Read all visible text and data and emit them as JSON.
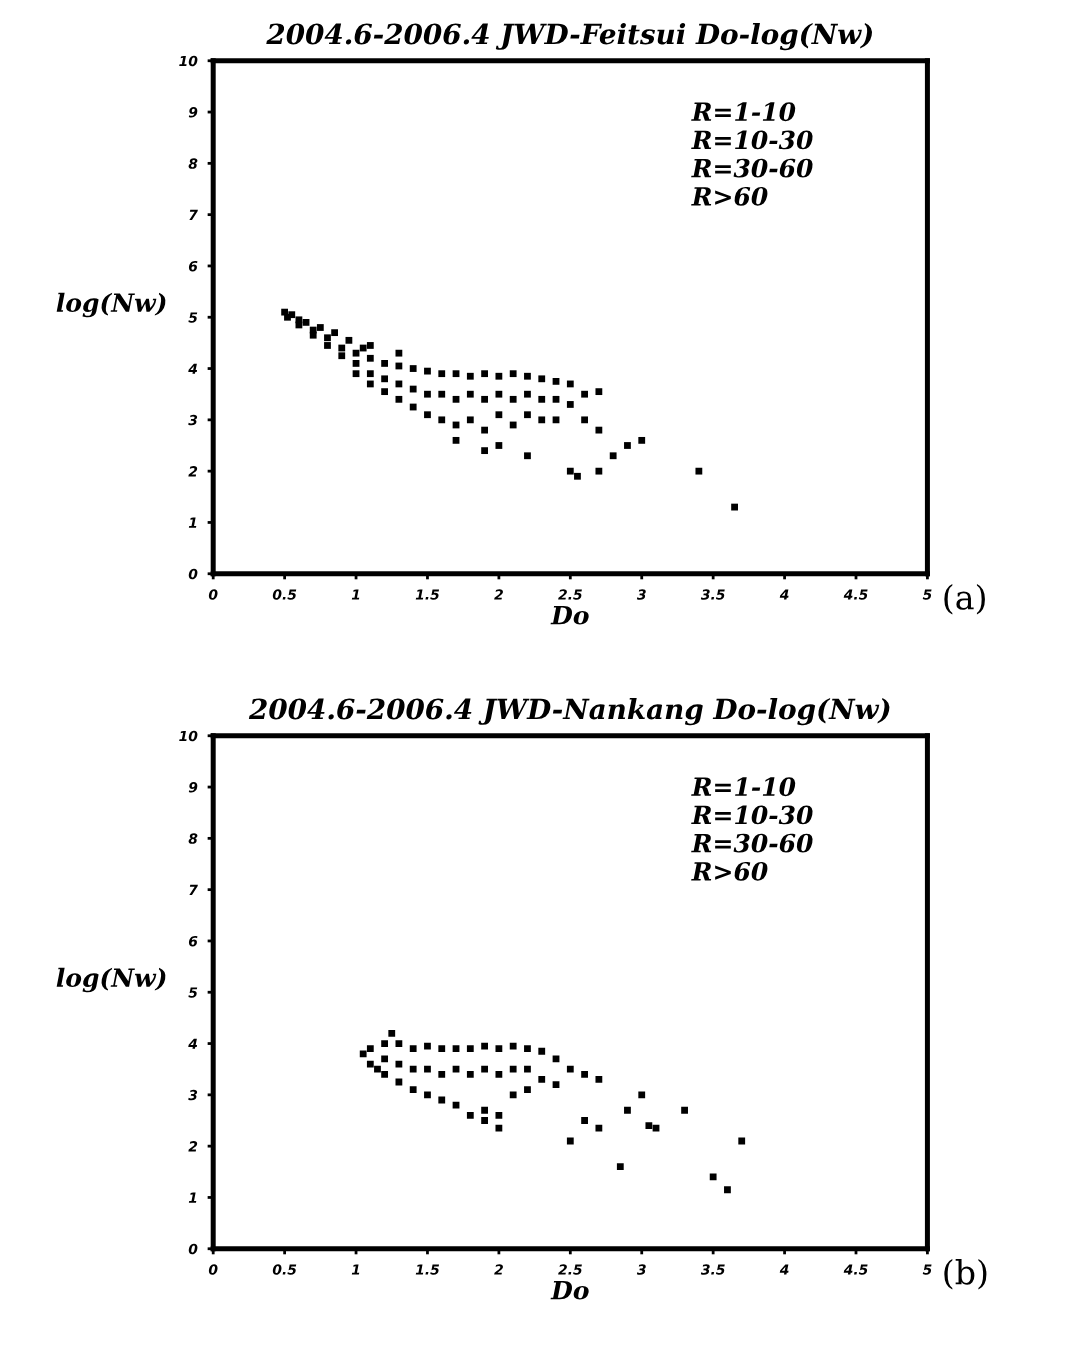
{
  "chart_data": [
    {
      "type": "scatter",
      "title": "2004.6-2006.4 JWD-Feitsui Do-log(Nw)",
      "xlabel": "Do",
      "ylabel": "log(Nw)",
      "xlim": [
        0,
        5
      ],
      "ylim": [
        0,
        10
      ],
      "xticks": [
        0,
        0.5,
        1,
        1.5,
        2,
        2.5,
        3,
        3.5,
        4,
        4.5,
        5
      ],
      "yticks": [
        0,
        1,
        2,
        3,
        4,
        5,
        6,
        7,
        8,
        9,
        10
      ],
      "marker": "square",
      "grid": false,
      "annotations": [
        "R=1-10",
        "R=10-30",
        "R=30-60",
        "R>60",
        "(a)"
      ],
      "series": [
        {
          "color": "#000000",
          "x": [
            0.5,
            0.52,
            0.55,
            0.6,
            0.6,
            0.65,
            0.7,
            0.7,
            0.75,
            0.8,
            0.8,
            0.85,
            0.9,
            0.9,
            0.95,
            1.0,
            1.0,
            1.0,
            1.05,
            1.1,
            1.1,
            1.1,
            1.2,
            1.2,
            1.2,
            1.3,
            1.3,
            1.3,
            1.4,
            1.4,
            1.4,
            1.5,
            1.5,
            1.5,
            1.6,
            1.6,
            1.6,
            1.7,
            1.7,
            1.7,
            1.8,
            1.8,
            1.8,
            1.9,
            1.9,
            1.9,
            2.0,
            2.0,
            2.0,
            2.1,
            2.1,
            2.1,
            2.2,
            2.2,
            2.2,
            2.3,
            2.3,
            2.3,
            2.4,
            2.4,
            2.4,
            2.5,
            2.5,
            2.6,
            2.7,
            2.6,
            1.1,
            1.3,
            2.7,
            2.5,
            2.55,
            2.7,
            3.0,
            2.9,
            3.4,
            3.65,
            2.8,
            2.2,
            2.0,
            1.9,
            1.7
          ],
          "values": [
            5.1,
            5.0,
            5.05,
            4.95,
            4.85,
            4.9,
            4.75,
            4.65,
            4.8,
            4.6,
            4.45,
            4.7,
            4.4,
            4.25,
            4.55,
            4.3,
            4.1,
            3.9,
            4.4,
            4.2,
            3.9,
            3.7,
            4.1,
            3.8,
            3.55,
            4.05,
            3.7,
            3.4,
            4.0,
            3.6,
            3.25,
            3.95,
            3.5,
            3.1,
            3.9,
            3.5,
            3.0,
            3.9,
            3.4,
            2.9,
            3.85,
            3.5,
            3.0,
            3.9,
            3.4,
            2.8,
            3.85,
            3.5,
            3.1,
            3.9,
            3.4,
            2.9,
            3.85,
            3.5,
            3.1,
            3.8,
            3.4,
            3.0,
            3.75,
            3.4,
            3.0,
            3.7,
            3.3,
            3.5,
            3.55,
            3.0,
            4.45,
            4.3,
            2.8,
            2.0,
            1.9,
            2.0,
            2.6,
            2.5,
            2.0,
            1.3,
            2.3,
            2.3,
            2.5,
            2.4,
            2.6
          ]
        }
      ]
    },
    {
      "type": "scatter",
      "title": "2004.6-2006.4 JWD-Nankang Do-log(Nw)",
      "xlabel": "Do",
      "ylabel": "log(Nw)",
      "xlim": [
        0,
        5
      ],
      "ylim": [
        0,
        10
      ],
      "xticks": [
        0,
        0.5,
        1,
        1.5,
        2,
        2.5,
        3,
        3.5,
        4,
        4.5,
        5
      ],
      "yticks": [
        0,
        1,
        2,
        3,
        4,
        5,
        6,
        7,
        8,
        9,
        10
      ],
      "marker": "square",
      "grid": false,
      "annotations": [
        "R=1-10",
        "R=10-30",
        "R=30-60",
        "R>60",
        "(b)"
      ],
      "series": [
        {
          "color": "#000000",
          "x": [
            1.05,
            1.1,
            1.1,
            1.15,
            1.2,
            1.2,
            1.2,
            1.25,
            1.3,
            1.3,
            1.3,
            1.4,
            1.4,
            1.4,
            1.5,
            1.5,
            1.5,
            1.6,
            1.6,
            1.6,
            1.7,
            1.7,
            1.7,
            1.8,
            1.8,
            1.8,
            1.9,
            1.9,
            1.9,
            2.0,
            2.0,
            2.0,
            2.1,
            2.1,
            2.1,
            2.2,
            2.2,
            2.2,
            2.3,
            2.3,
            2.4,
            2.4,
            2.5,
            2.6,
            2.7,
            3.0,
            2.9,
            3.3,
            3.05,
            3.1,
            2.7,
            2.5,
            2.85,
            3.5,
            3.6,
            3.7,
            2.6,
            2.0,
            1.9
          ],
          "values": [
            3.8,
            3.6,
            3.9,
            3.5,
            4.0,
            3.7,
            3.4,
            4.2,
            4.0,
            3.6,
            3.25,
            3.9,
            3.5,
            3.1,
            3.95,
            3.5,
            3.0,
            3.9,
            3.4,
            2.9,
            3.9,
            3.5,
            2.8,
            3.9,
            3.4,
            2.6,
            3.95,
            3.5,
            2.7,
            3.9,
            3.4,
            2.6,
            3.95,
            3.5,
            3.0,
            3.9,
            3.5,
            3.1,
            3.85,
            3.3,
            3.7,
            3.2,
            3.5,
            3.4,
            3.3,
            3.0,
            2.7,
            2.7,
            2.4,
            2.35,
            2.35,
            2.1,
            1.6,
            1.4,
            1.15,
            2.1,
            2.5,
            2.35,
            2.5
          ]
        }
      ]
    }
  ]
}
